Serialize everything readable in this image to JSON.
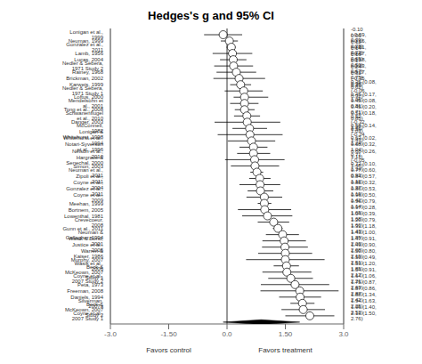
{
  "chart_data": {
    "type": "forest",
    "title": "Hedges's g and 95% CI",
    "xlabel_left": "Favors control",
    "xlabel_right": "Favors treatment",
    "categories": [
      "Lonigan et al., 1999",
      "Neuman, 1999",
      "Gonzalez et al., 2011",
      "Lamb, 1956",
      "Lucas, 2004",
      "Nedler & Sebera, 1971 Study 2",
      "Rainey, 1968",
      "Brickman, 2002",
      "Karweis, 1999",
      "Nedler & Sebera, 1971 Study 1",
      "Loftus, 2000",
      "Mendelsohn et al., 2001",
      "Tong et al., 2008",
      "Schwanenflugel et al., 2010",
      "Danger, 2003",
      "McConnell, 1982",
      "Lonigan & Whitehurst, 1998",
      "Whitehurst et al., 1994",
      "Notari-Syverson et al., 1996",
      "Nelson et al., 2010",
      "Hargrave & Senechal, 2000",
      "Simon, 2003",
      "Neuman et al., 2011",
      "Zipoli et al., 2011",
      "Coyne et al., 2004",
      "Gonzalez et al., 2011",
      "Coyne et al., 2009",
      "Meehan, 1999",
      "Bortnem, 2005",
      "Lowenthal, 1981",
      "Crevecoeur, 2008",
      "Gunn et al., 2011",
      "Neuman & Gallagher, 1994",
      "Wasik & Bond, 2001",
      "Justice et al., 2005",
      "Warren & Kaiser, 1986",
      "Murphy, 2007",
      "Wasik et al., 2006",
      "Beck & McKeown, 2007 Study 1",
      "Coyne et al., 2007 Study 2",
      "Peta, 1973",
      "Freeman, 2008",
      "Daniels, 1994",
      "Silverman, 2007a",
      "Beck & McKeown, 2007 Study 2",
      "Coyne et al., 2007 Study 1"
    ],
    "values": [
      -0.1,
      0.06,
      0.11,
      0.14,
      0.16,
      0.17,
      0.24,
      0.31,
      0.35,
      0.43,
      0.45,
      0.45,
      0.45,
      0.51,
      0.52,
      0.58,
      0.59,
      0.63,
      0.68,
      0.68,
      0.71,
      0.72,
      0.77,
      0.84,
      0.85,
      0.86,
      0.96,
      0.96,
      0.97,
      1.04,
      1.2,
      1.31,
      1.43,
      1.47,
      1.49,
      1.5,
      1.5,
      1.53,
      1.54,
      1.64,
      1.75,
      1.87,
      1.88,
      1.94,
      1.96,
      2.13
    ],
    "ci_lo": [
      -0.59,
      -0.16,
      -0.01,
      -0.37,
      -0.18,
      -0.33,
      -0.27,
      -0.35,
      0.08,
      -0.06,
      0.17,
      0.08,
      0.2,
      0.18,
      -0.32,
      0.14,
      -0.24,
      0.02,
      0.32,
      0.26,
      -0.05,
      0.1,
      0.6,
      0.57,
      0.32,
      0.53,
      0.5,
      0.79,
      0.28,
      0.39,
      0.79,
      1.18,
      1.0,
      0.91,
      0.9,
      0.8,
      0.49,
      1.2,
      0.91,
      1.06,
      0.87,
      0.86,
      1.34,
      1.63,
      1.4,
      1.5
    ],
    "ci_hi": [
      0.39,
      0.28,
      0.22,
      0.65,
      0.5,
      0.67,
      0.75,
      0.98,
      0.62,
      0.92,
      1.06,
      0.81,
      0.71,
      0.85,
      1.37,
      1.03,
      1.43,
      1.24,
      1.04,
      1.11,
      1.48,
      1.34,
      0.93,
      1.12,
      1.37,
      1.19,
      1.42,
      1.14,
      1.65,
      1.68,
      1.6,
      1.43,
      1.85,
      2.03,
      2.08,
      2.19,
      2.51,
      1.85,
      2.17,
      2.21,
      2.63,
      2.87,
      2.42,
      2.25,
      2.52,
      2.76
    ],
    "value_labels": [
      "-0.10 (-0.59, 0.39)",
      "0.06 (-0.16, 0.28)",
      "0.11 (-0.01, 0.22)",
      "0.14 (-0.37, 0.65)",
      "0.16 (-0.18, 0.50)",
      "0.17 (-0.33, 0.67)",
      "0.24 (-0.27, 0.75)",
      "0.31 (-0.35, 0.98)",
      "0.35 (0.08, 0.62)",
      "0.43 (-0.06, 0.92)",
      "0.45 (0.17, 1.06)",
      "0.45 (0.08, 0.81)",
      "0.45 (0.20, 0.71)",
      "0.51 (0.18, 0.85)",
      "0.52 (-0.32, 1.37)",
      "0.58 (0.14, 1.03)",
      "0.59 (-0.24, 1.43)",
      "0.63 (0.02, 1.24)",
      "0.68 (0.32, 1.04)",
      "0.68 (0.26, 1.11)",
      "0.71 (-0.05, 1.48)",
      "0.72 (0.10, 1.34)",
      "0.77 (0.60, 0.93)",
      "0.84 (0.57, 1.12)",
      "0.85 (0.32, 1.37)",
      "0.86 (0.53, 1.19)",
      "0.96 (0.50, 1.42)",
      "0.96 (0.79, 1.14)",
      "0.97 (0.28, 1.65)",
      "1.04 (0.39, 1.68)",
      "1.20 (0.79, 1.60)",
      "1.31 (1.18, 1.43)",
      "1.43 (1.00, 1.85)",
      "1.47 (0.91, 2.03)",
      "1.49 (0.90, 2.08)",
      "1.50 (0.80, 2.19)",
      "1.50 (0.49, 2.51)",
      "1.53 (1.20, 1.85)",
      "1.54 (0.91, 2.17)",
      "1.64 (1.06, 2.21)",
      "1.75 (0.87, 2.63)",
      "1.87 (0.86, 2.87)",
      "1.88 (1.34, 2.42)",
      "1.94 (1.63, 2.25)",
      "1.96 (1.40, 2.52)",
      "2.13 (1.50, 2.76)"
    ],
    "summary": {
      "value": 0.88,
      "ci_lo": -0.1,
      "ci_hi": 1.87,
      "color": "black"
    },
    "color": "black",
    "marker": "circle",
    "xlim": [
      -3.0,
      3.0
    ],
    "xticks": [
      {
        "value": -3.0,
        "label": "-3.0"
      },
      {
        "value": -1.5,
        "label": "-1.50"
      },
      {
        "value": 0.0,
        "label": "0.0"
      },
      {
        "value": 1.5,
        "label": "1.50"
      },
      {
        "value": 3.0,
        "label": "3.0"
      }
    ],
    "reference_lines": [
      0.0
    ],
    "grid": false
  }
}
